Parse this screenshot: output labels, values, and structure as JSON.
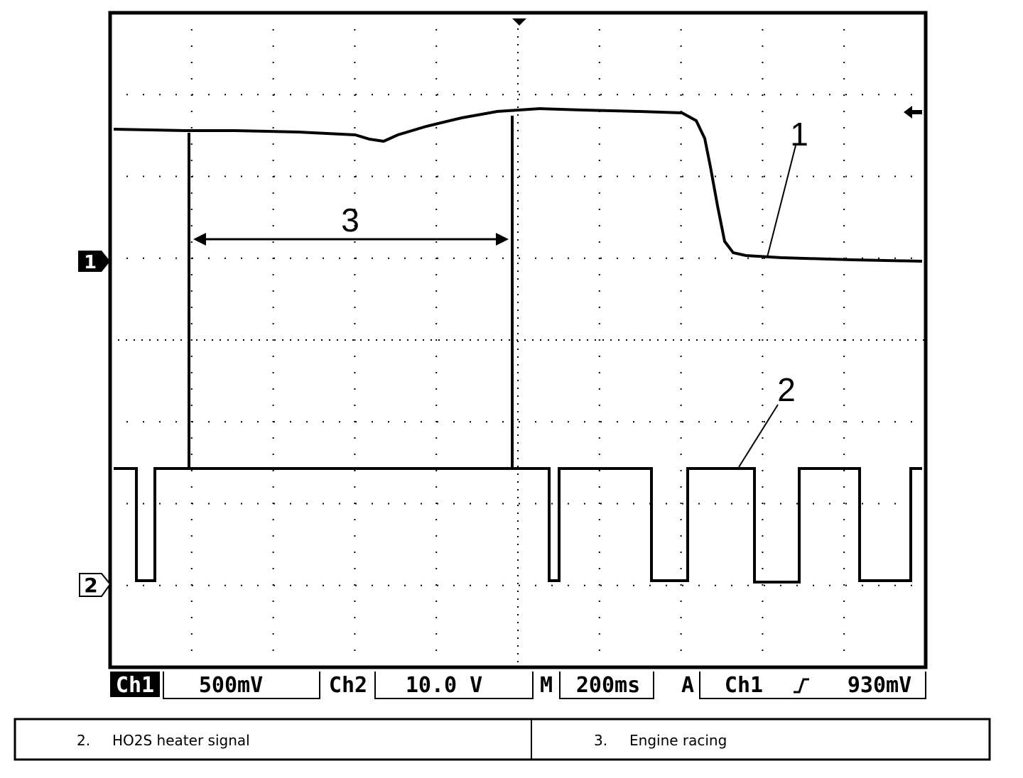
{
  "screen": {
    "trace_labels": [
      "1",
      "2",
      "3"
    ],
    "channel_markers": [
      "1",
      "2"
    ]
  },
  "status_bar": {
    "ch1": "Ch1",
    "ch1_scale": "500mV",
    "ch2": "Ch2",
    "ch2_scale": "10.0 V",
    "m": "M",
    "timebase": "200ms",
    "a": "A",
    "trigger_source": "Ch1",
    "trigger_level": "930mV"
  },
  "legend": {
    "rows": [
      [
        "2.",
        "HO2S heater signal"
      ],
      [
        "3.",
        "Engine racing"
      ]
    ]
  }
}
